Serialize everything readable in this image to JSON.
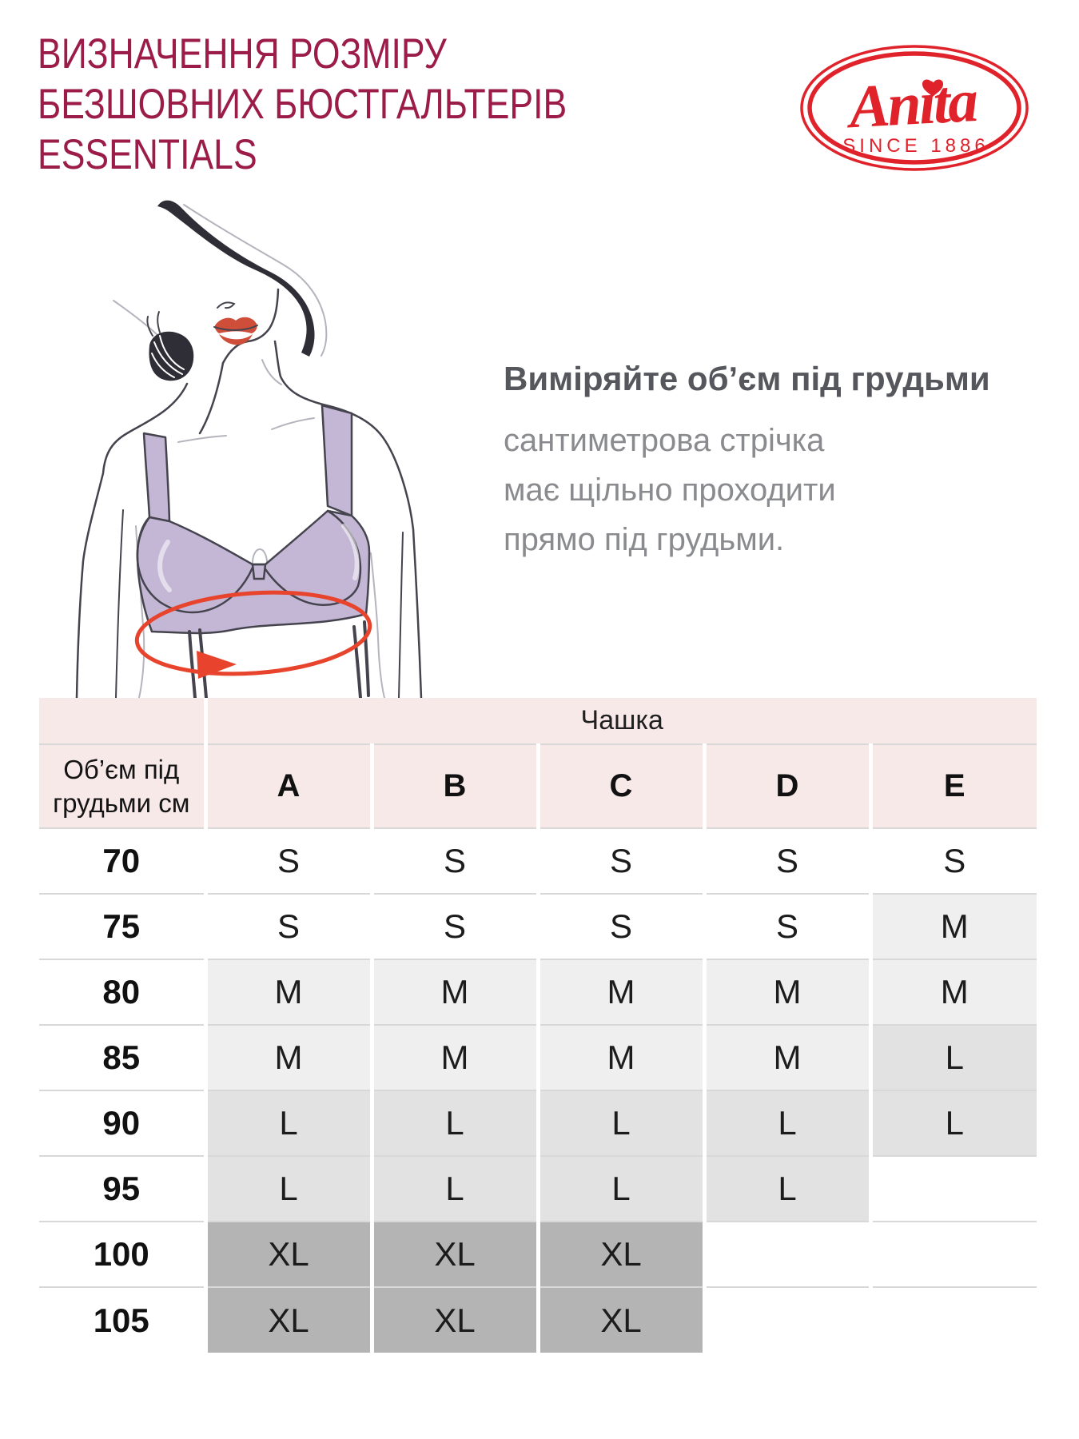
{
  "page": {
    "title_lines": [
      "ВИЗНАЧЕННЯ РОЗМІРУ",
      "БЕЗШОВНИХ БЮСТГАЛЬТЕРІВ",
      "ESSENTIALS"
    ]
  },
  "logo": {
    "brand": "Anita",
    "tagline": "SINCE 1886"
  },
  "instruction": {
    "heading": "Виміряйте об’єм під грудьми",
    "lines": [
      "сантиметрова стрічка",
      "має щільно проходити",
      "прямо під грудьми."
    ]
  },
  "size_table": {
    "cup_header": "Чашка",
    "row_header": "Об’єм під грудьми см",
    "cup_columns": [
      "A",
      "B",
      "C",
      "D",
      "E"
    ],
    "rows": [
      {
        "underbust": "70",
        "sizes": [
          "S",
          "S",
          "S",
          "S",
          "S"
        ]
      },
      {
        "underbust": "75",
        "sizes": [
          "S",
          "S",
          "S",
          "S",
          "M"
        ]
      },
      {
        "underbust": "80",
        "sizes": [
          "M",
          "M",
          "M",
          "M",
          "M"
        ]
      },
      {
        "underbust": "85",
        "sizes": [
          "M",
          "M",
          "M",
          "M",
          "L"
        ]
      },
      {
        "underbust": "90",
        "sizes": [
          "L",
          "L",
          "L",
          "L",
          "L"
        ]
      },
      {
        "underbust": "95",
        "sizes": [
          "L",
          "L",
          "L",
          "L",
          ""
        ]
      },
      {
        "underbust": "100",
        "sizes": [
          "XL",
          "XL",
          "XL",
          "",
          ""
        ]
      },
      {
        "underbust": "105",
        "sizes": [
          "XL",
          "XL",
          "XL",
          "",
          ""
        ]
      }
    ],
    "size_colors": {
      "S": "#ffffff",
      "M": "#efefef",
      "L": "#e2e2e2",
      "XL": "#b4b4b4",
      "": "#ffffff"
    }
  },
  "theme": {
    "title-color": "#9c1c49",
    "logo-red": "#e0222b",
    "heading-color": "#56575c",
    "body-text-color": "#8a8b8e",
    "text-dark": "#1d1d1b",
    "table-header-bg": "#f8e9e9",
    "row-border": "#d8d8d8",
    "accent-red": "#e8432c",
    "bra-fill": "#c3b7d5",
    "lips-red": "#ce4e3a",
    "hair-dark": "#2f2e37",
    "sketch-dark": "#45444e",
    "sketch-light": "#b4b4bd"
  }
}
